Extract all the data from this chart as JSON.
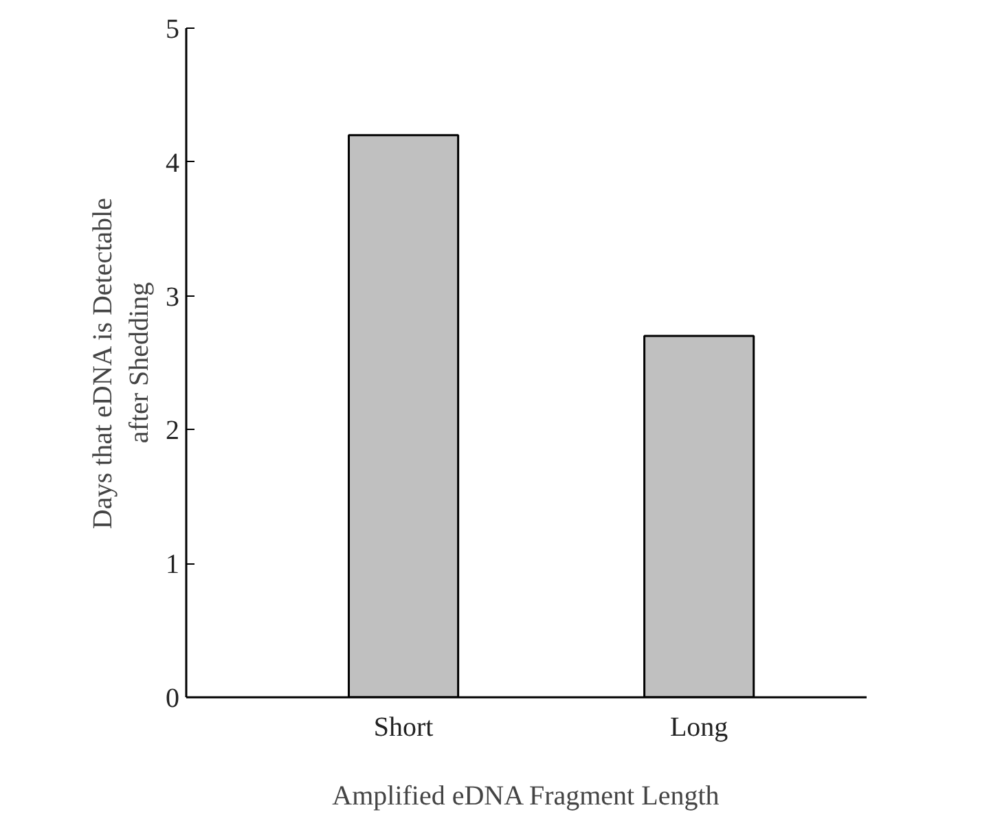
{
  "chart_data": {
    "type": "bar",
    "xlabel": "Amplified eDNA Fragment Length",
    "ylabel": "Days that eDNA is Detectable\nafter Shedding",
    "categories": [
      "Short",
      "Long"
    ],
    "values": [
      4.2,
      2.7
    ],
    "color": "#c0c0c0",
    "ylim": [
      0,
      5
    ],
    "yticks": [
      0,
      1,
      2,
      3,
      4,
      5
    ],
    "grid": false
  }
}
